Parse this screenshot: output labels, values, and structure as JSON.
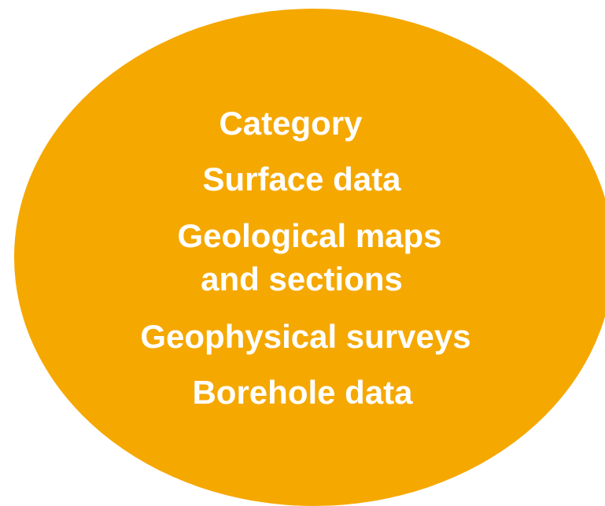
{
  "ellipse": {
    "fill": "#F5A800",
    "text_color": "#FFFFFF"
  },
  "lines": [
    "Category",
    "Surface data",
    "Geological maps",
    "and sections",
    "Geophysical surveys",
    "Borehole data"
  ]
}
